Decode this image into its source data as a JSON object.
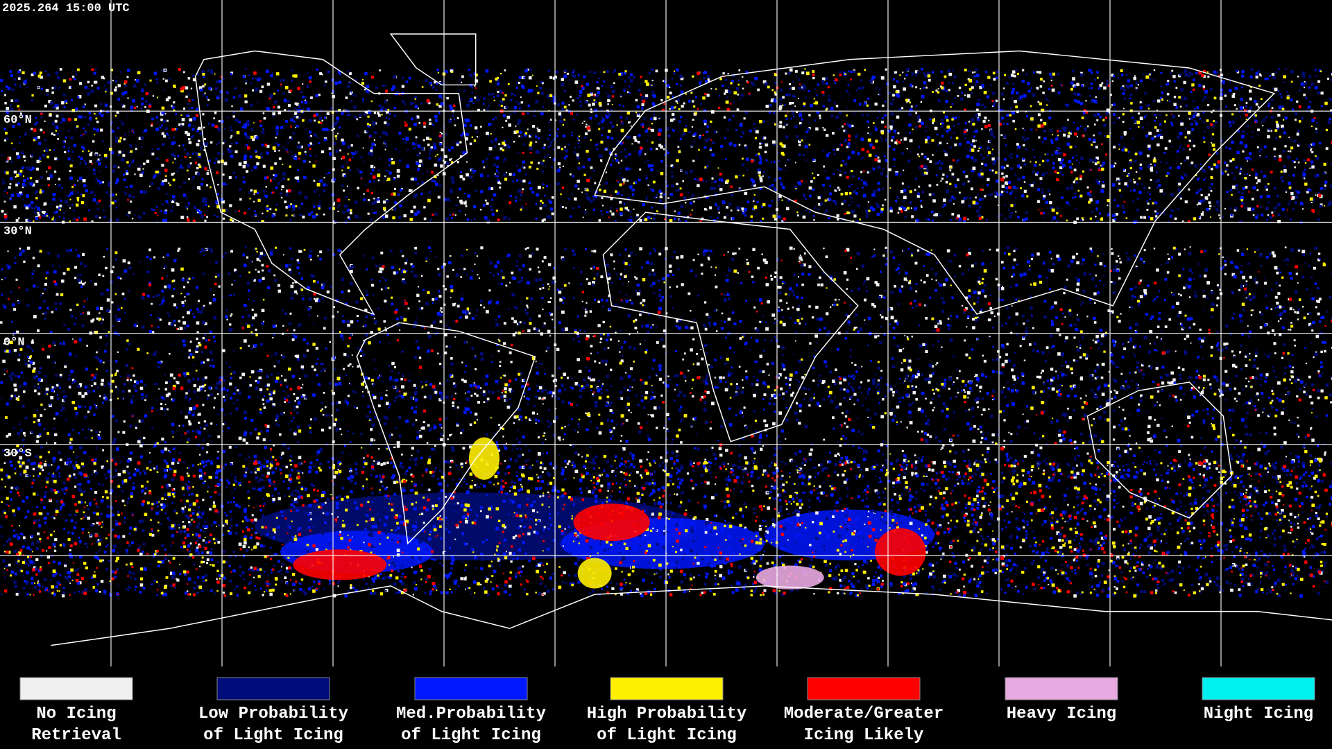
{
  "header": {
    "timestamp": "2025.264 15:00 UTC"
  },
  "grid_labels": [
    "60°N",
    "30°N",
    "0°N",
    "30°S"
  ],
  "legend": [
    {
      "color": "#f0f0f0",
      "lines": [
        "No Icing",
        "Retrieval"
      ]
    },
    {
      "color": "#000c7a",
      "lines": [
        "Low Probability",
        "of Light Icing"
      ]
    },
    {
      "color": "#0018ff",
      "lines": [
        "Med.Probability",
        "of Light Icing"
      ]
    },
    {
      "color": "#fff000",
      "lines": [
        "High Probability",
        "of Light Icing"
      ]
    },
    {
      "color": "#ff0000",
      "lines": [
        "Moderate/Greater",
        "Icing Likely"
      ]
    },
    {
      "color": "#e8a8e0",
      "lines": [
        "Heavy Icing",
        ""
      ]
    },
    {
      "color": "#00f0f0",
      "lines": [
        "Night Icing",
        ""
      ]
    }
  ]
}
